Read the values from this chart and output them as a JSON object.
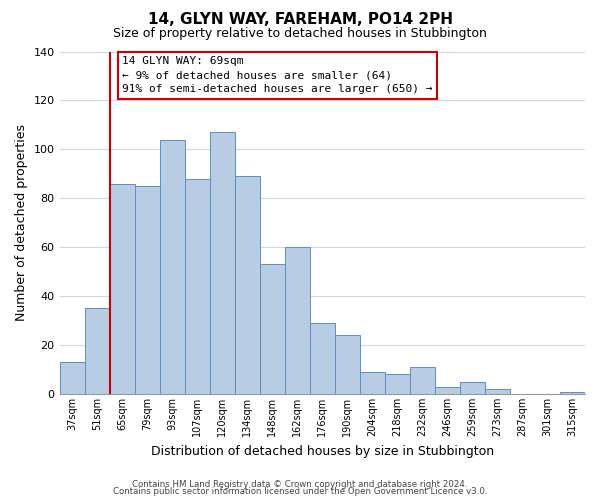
{
  "title": "14, GLYN WAY, FAREHAM, PO14 2PH",
  "subtitle": "Size of property relative to detached houses in Stubbington",
  "xlabel": "Distribution of detached houses by size in Stubbington",
  "ylabel": "Number of detached properties",
  "bar_labels": [
    "37sqm",
    "51sqm",
    "65sqm",
    "79sqm",
    "93sqm",
    "107sqm",
    "120sqm",
    "134sqm",
    "148sqm",
    "162sqm",
    "176sqm",
    "190sqm",
    "204sqm",
    "218sqm",
    "232sqm",
    "246sqm",
    "259sqm",
    "273sqm",
    "287sqm",
    "301sqm",
    "315sqm"
  ],
  "bar_heights": [
    13,
    35,
    86,
    85,
    104,
    88,
    107,
    89,
    53,
    60,
    29,
    24,
    9,
    8,
    11,
    3,
    5,
    2,
    0,
    0,
    1
  ],
  "bar_color": "#b8cce4",
  "bar_edge_color": "#5b8ec4",
  "ylim": [
    0,
    140
  ],
  "yticks": [
    0,
    20,
    40,
    60,
    80,
    100,
    120,
    140
  ],
  "vline_color": "#cc0000",
  "annotation_line0": "14 GLYN WAY: 69sqm",
  "annotation_line1": "← 9% of detached houses are smaller (64)",
  "annotation_line2": "91% of semi-detached houses are larger (650) →",
  "annotation_box_color": "#ffffff",
  "annotation_box_edge": "#cc0000",
  "footer1": "Contains HM Land Registry data © Crown copyright and database right 2024.",
  "footer2": "Contains public sector information licensed under the Open Government Licence v3.0.",
  "background_color": "#ffffff",
  "grid_color": "#c8d8e8"
}
